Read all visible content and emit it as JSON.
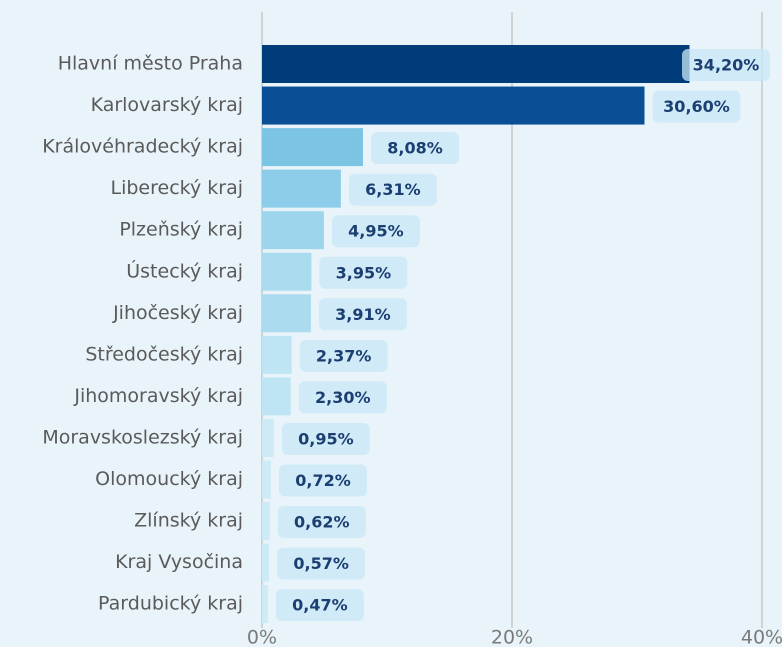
{
  "chart_data": {
    "type": "hbar",
    "categories": [
      "Hlavní město Praha",
      "Karlovarský kraj",
      "Královéhradecký kraj",
      "Liberecký kraj",
      "Plzeňský kraj",
      "Ústecký kraj",
      "Jihočeský kraj",
      "Středočeský kraj",
      "Jihomoravský kraj",
      "Moravskoslezský kraj",
      "Olomoucký kraj",
      "Zlínský kraj",
      "Kraj Vysočina",
      "Pardubický kraj"
    ],
    "values": [
      34.2,
      30.6,
      8.08,
      6.31,
      4.95,
      3.95,
      3.91,
      2.37,
      2.3,
      0.95,
      0.72,
      0.62,
      0.57,
      0.47
    ],
    "value_labels": [
      "34,20%",
      "30,60%",
      "8,08%",
      "6,31%",
      "4,95%",
      "3,95%",
      "3,91%",
      "2,37%",
      "2,30%",
      "0,95%",
      "0,72%",
      "0,62%",
      "0,57%",
      "0,47%"
    ],
    "colors": [
      "#003b7a",
      "#0a4f95",
      "#7cc4e4",
      "#8dcde9",
      "#9dd5ed",
      "#abdbef",
      "#abdbef",
      "#bfe4f3",
      "#bfe4f3",
      "#cdeaf6",
      "#cdeaf6",
      "#cdeaf6",
      "#cdeaf6",
      "#cdeaf6"
    ],
    "xlim": [
      0,
      40
    ],
    "xticks": [
      {
        "value": 0,
        "label": "0%"
      },
      {
        "value": 20,
        "label": "20%"
      },
      {
        "value": 40,
        "label": "40%"
      }
    ],
    "grid": true
  }
}
